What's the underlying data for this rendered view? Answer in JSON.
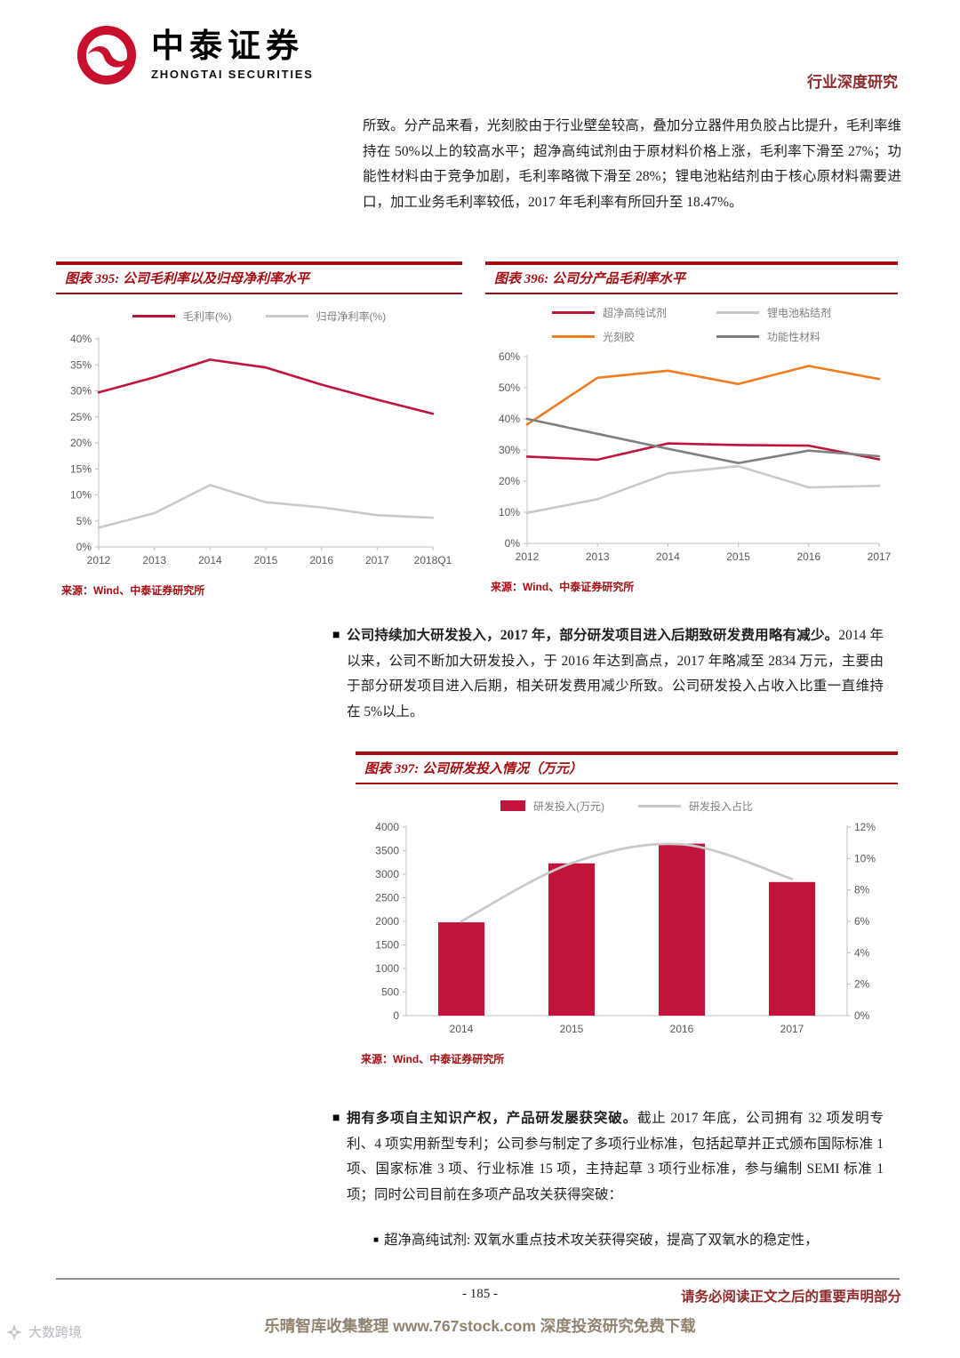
{
  "header": {
    "brand_cn": "中泰证券",
    "brand_en": "ZHONGTAI SECURITIES",
    "report_type": "行业深度研究"
  },
  "intro_paragraph": "所致。分产品来看，光刻胶由于行业壁垒较高，叠加分立器件用负胶占比提升，毛利率维持在 50%以上的较高水平；超净高纯试剂由于原材料价格上涨，毛利率下滑至 27%；功能性材料由于竞争加剧，毛利率略微下滑至 28%；锂电池粘结剂由于核心原材料需要进口，加工业务毛利率较低，2017 年毛利率有所回升至 18.47%。",
  "bullets": [
    {
      "marker": "■",
      "lead": "公司持续加大研发投入，2017 年，部分研发项目进入后期致研发费用略有减少。",
      "rest": "2014 年以来，公司不断加大研发投入，于 2016 年达到高点，2017 年略减至 2834 万元，主要由于部分研发项目进入后期，相关研发费用减少所致。公司研发投入占收入比重一直维持在 5%以上。"
    },
    {
      "marker": "■",
      "lead": "拥有多项自主知识产权，产品研发屡获突破。",
      "rest": "截止 2017 年底，公司拥有 32 项发明专利、4 项实用新型专利；公司参与制定了多项行业标准，包括起草并正式颁布国际标准 1 项、国家标准 3 项、行业标准 15 项，主持起草 3 项行业标准，参与编制 SEMI 标准 1 项；同时公司目前在多项产品攻关获得突破："
    }
  ],
  "sub_bullet": {
    "marker": "■",
    "text": "超净高纯试剂: 双氧水重点技术攻关获得突破，提高了双氧水的稳定性，"
  },
  "footer": {
    "page_number": "- 185 -",
    "disclaimer": "请务必阅读正文之后的重要声明部分",
    "promo": "乐晴智库收集整理 www.767stock.com 深度投资研究免费下载",
    "watermark": "大数跨境"
  },
  "colors": {
    "accent_red": "#a50d12",
    "header_red": "#8f2b2b",
    "logo_red": "#c8102e"
  },
  "chart_data": [
    {
      "id": "fig395",
      "type": "line",
      "title": "图表 395: 公司毛利率以及归母净利率水平",
      "source": "来源：Wind、中泰证券研究所",
      "categories": [
        "2012",
        "2013",
        "2014",
        "2015",
        "2016",
        "2017",
        "2018Q1"
      ],
      "series": [
        {
          "name": "毛利率(%)",
          "color": "#c0143c",
          "values": [
            29.7,
            32.6,
            36.0,
            34.5,
            31.2,
            28.3,
            25.6
          ]
        },
        {
          "name": "归母净利率(%)",
          "color": "#c9c9c9",
          "values": [
            3.7,
            6.5,
            11.9,
            8.6,
            7.6,
            6.1,
            5.6
          ]
        }
      ],
      "ylim": [
        0,
        40
      ],
      "ytick_step": 5,
      "grid": false,
      "legend_position": "top"
    },
    {
      "id": "fig396",
      "type": "line",
      "title": "图表 396: 公司分产品毛利率水平",
      "source": "来源：Wind、中泰证券研究所",
      "categories": [
        "2012",
        "2013",
        "2014",
        "2015",
        "2016",
        "2017"
      ],
      "series": [
        {
          "name": "超净高纯试剂",
          "color": "#c0143c",
          "values": [
            27.9,
            26.9,
            32.1,
            31.6,
            31.4,
            27.0
          ]
        },
        {
          "name": "锂电池粘结剂",
          "color": "#c9c9c9",
          "values": [
            9.8,
            14.2,
            22.5,
            24.8,
            18.0,
            18.5
          ]
        },
        {
          "name": "光刻胶",
          "color": "#f17c20",
          "values": [
            38.2,
            53.2,
            55.5,
            51.2,
            57.0,
            52.8
          ]
        },
        {
          "name": "功能性材料",
          "color": "#808080",
          "values": [
            40.0,
            35.2,
            30.4,
            25.8,
            29.8,
            28.0
          ]
        }
      ],
      "ylim": [
        0,
        60
      ],
      "ytick_step": 10,
      "grid": false,
      "legend_position": "top"
    },
    {
      "id": "fig397",
      "type": "bar+line",
      "title": "图表 397: 公司研发投入情况（万元）",
      "source": "来源：Wind、中泰证券研究所",
      "categories": [
        "2014",
        "2015",
        "2016",
        "2017"
      ],
      "bar_series": {
        "name": "研发投入(万元)",
        "color": "#c0143c",
        "axis": "left",
        "values": [
          1980,
          3230,
          3650,
          2834
        ]
      },
      "line_series": {
        "name": "研发投入占比",
        "color": "#c9c9c9",
        "axis": "right",
        "values": [
          6.0,
          9.7,
          10.9,
          8.7
        ]
      },
      "ylim_left": [
        0,
        4000
      ],
      "ytick_step_left": 500,
      "ylim_right": [
        0,
        12
      ],
      "ytick_step_right": 2,
      "grid": false,
      "legend_position": "top"
    }
  ]
}
